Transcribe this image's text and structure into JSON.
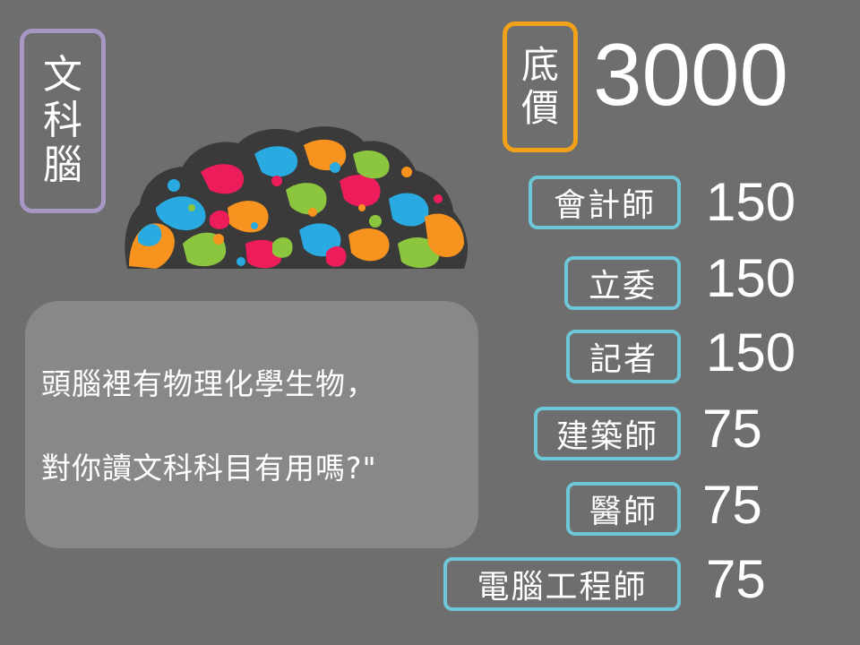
{
  "title_box": [
    "文",
    "科",
    "腦"
  ],
  "price": {
    "label": [
      "底",
      "價"
    ],
    "value": "3000"
  },
  "jobs": [
    {
      "label": "會計師",
      "value": "150"
    },
    {
      "label": "立委",
      "value": "150"
    },
    {
      "label": "記者",
      "value": "150"
    },
    {
      "label": "建築師",
      "value": "75"
    },
    {
      "label": "醫師",
      "value": "75"
    },
    {
      "label": "電腦工程師",
      "value": "75"
    }
  ],
  "quote": {
    "line1": "頭腦裡有物理化學生物，",
    "line2": "對你讀文科科目有用嗎?\""
  },
  "colors": {
    "background": "#6e6e6e",
    "title_border": "#a896c4",
    "price_border": "#f2a21a",
    "job_border": "#6dc7d8",
    "bubble": "#888888",
    "brain_palette": [
      "#f7931e",
      "#29abe2",
      "#ed1c5b",
      "#8cc63f",
      "#3a3a3a"
    ]
  },
  "icons": {
    "brain": "colorful-brain-illustration"
  }
}
